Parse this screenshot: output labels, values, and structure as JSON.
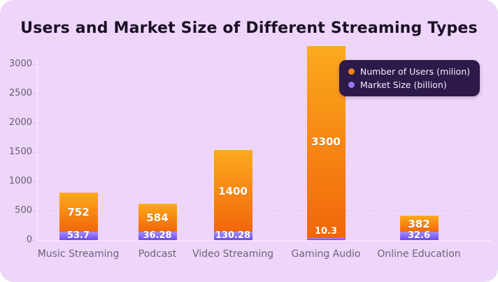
{
  "title": "Users and Market Size of Different Streaming Types",
  "legend": {
    "items": [
      {
        "id": "users",
        "label": "Number of Users (milion)",
        "dot_color": "#f9830f"
      },
      {
        "id": "market",
        "label": "Market Size (billion)",
        "dot_color": "#9678f8"
      }
    ]
  },
  "chart_data": {
    "type": "bar",
    "stacked": true,
    "title": "Users and Market Size of Different Streaming Types",
    "categories": [
      "Music Streaming",
      "Podcast",
      "Video Streaming",
      "Gaming Audio",
      "Online Education"
    ],
    "series": [
      {
        "name": "Market Size (billion)",
        "key": "market",
        "values": [
          53.7,
          36.28,
          130.28,
          10.3,
          32.6
        ]
      },
      {
        "name": "Number of Users (milion)",
        "key": "users",
        "values": [
          752,
          584,
          1400,
          3300,
          382
        ]
      }
    ],
    "xlabel": "",
    "ylabel": "",
    "ylim": [
      0,
      3000
    ],
    "yticks": [
      0,
      500,
      1000,
      1500,
      2000,
      2500,
      3000
    ],
    "grid": "dashed-horizontal",
    "legend_position": "top-right",
    "bar_label_color": "#ffffff"
  },
  "colors": {
    "card_bg": "#eed5fa",
    "title_text": "#1a1124",
    "axis_text": "#655e70",
    "x_axis_text": "#6c6478",
    "grid_line": "#e5c9f4",
    "axis_line": "#f5e6fd",
    "legend_bg": "#2d1a4b",
    "legend_text": "#f2ecfa",
    "users_gradient_top": "#fbaa1d",
    "users_gradient_bottom": "#f1660a",
    "market_gradient_top": "#a78bfa",
    "market_gradient_bottom": "#6f4bf0"
  }
}
